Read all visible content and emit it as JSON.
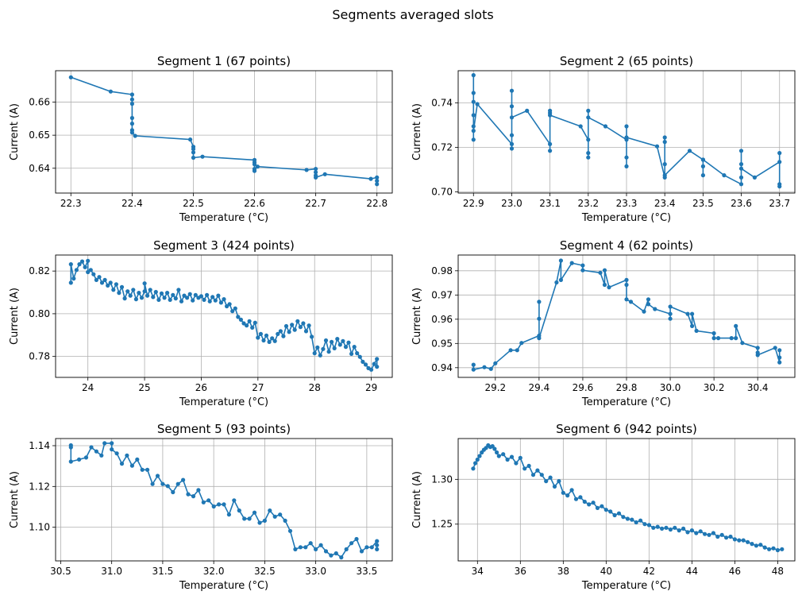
{
  "title": "Segments averaged slots",
  "line_color": "#1f77b4",
  "grid_color": "#b0b0b0",
  "chart_data": [
    {
      "type": "line",
      "title": "Segment 1 (67 points)",
      "xlabel": "Temperature (°C)",
      "ylabel": "Current (A)",
      "grid": true,
      "xlim": [
        22.275,
        22.825
      ],
      "ylim": [
        0.6325,
        0.6695
      ],
      "xticks": [
        22.3,
        22.4,
        22.5,
        22.6,
        22.7,
        22.8
      ],
      "xtick_labels": [
        "22.3",
        "22.4",
        "22.5",
        "22.6",
        "22.7",
        "22.8"
      ],
      "yticks": [
        0.64,
        0.65,
        0.66
      ],
      "ytick_labels": [
        "0.64",
        "0.65",
        "0.66"
      ],
      "x": [
        22.3,
        22.365,
        22.4,
        22.4,
        22.4,
        22.4,
        22.4,
        22.4,
        22.4,
        22.405,
        22.495,
        22.5,
        22.5,
        22.5,
        22.5,
        22.515,
        22.6,
        22.6,
        22.6,
        22.6,
        22.6,
        22.605,
        22.685,
        22.7,
        22.7,
        22.7,
        22.7,
        22.715,
        22.79,
        22.8,
        22.8,
        22.8
      ],
      "y": [
        0.6675,
        0.6632,
        0.6623,
        0.6608,
        0.6595,
        0.6552,
        0.6535,
        0.6515,
        0.6508,
        0.6498,
        0.6487,
        0.6465,
        0.6448,
        0.6458,
        0.6432,
        0.6435,
        0.6425,
        0.6418,
        0.6398,
        0.6392,
        0.6412,
        0.6405,
        0.6395,
        0.6398,
        0.6378,
        0.6388,
        0.6372,
        0.6382,
        0.6368,
        0.6372,
        0.6352,
        0.6362
      ]
    },
    {
      "type": "line",
      "title": "Segment 2 (65 points)",
      "xlabel": "Temperature (°C)",
      "ylabel": "Current (A)",
      "grid": true,
      "xlim": [
        22.86,
        23.74
      ],
      "ylim": [
        0.6995,
        0.7545
      ],
      "xticks": [
        22.9,
        23.0,
        23.1,
        23.2,
        23.3,
        23.4,
        23.5,
        23.6,
        23.7
      ],
      "xtick_labels": [
        "22.9",
        "23.0",
        "23.1",
        "23.2",
        "23.3",
        "23.4",
        "23.5",
        "23.6",
        "23.7"
      ],
      "yticks": [
        0.7,
        0.72,
        0.74
      ],
      "ytick_labels": [
        "0.70",
        "0.72",
        "0.74"
      ],
      "x": [
        22.9,
        22.9,
        22.9,
        22.9,
        22.9,
        22.9,
        22.9,
        22.91,
        23.0,
        23.0,
        23.0,
        23.0,
        23.0,
        23.0,
        23.04,
        23.1,
        23.1,
        23.1,
        23.1,
        23.1,
        23.18,
        23.2,
        23.2,
        23.2,
        23.2,
        23.2,
        23.245,
        23.3,
        23.3,
        23.3,
        23.3,
        23.3,
        23.38,
        23.4,
        23.4,
        23.4,
        23.4,
        23.4,
        23.465,
        23.5,
        23.5,
        23.5,
        23.5,
        23.555,
        23.6,
        23.6,
        23.6,
        23.6,
        23.6,
        23.635,
        23.7,
        23.7,
        23.7,
        23.7
      ],
      "y": [
        0.7525,
        0.7445,
        0.7405,
        0.7345,
        0.7295,
        0.7235,
        0.7275,
        0.7395,
        0.7215,
        0.7195,
        0.7255,
        0.7455,
        0.7385,
        0.7335,
        0.7365,
        0.7215,
        0.7185,
        0.7365,
        0.7355,
        0.7345,
        0.7295,
        0.7235,
        0.7155,
        0.7175,
        0.7365,
        0.7335,
        0.7295,
        0.7235,
        0.7115,
        0.7155,
        0.7295,
        0.7245,
        0.7205,
        0.7065,
        0.7125,
        0.7245,
        0.7225,
        0.7075,
        0.7185,
        0.7145,
        0.7075,
        0.7115,
        0.7145,
        0.7075,
        0.7035,
        0.7065,
        0.7125,
        0.7185,
        0.7105,
        0.7065,
        0.7135,
        0.7025,
        0.7035,
        0.7175
      ]
    },
    {
      "type": "line",
      "title": "Segment 3 (424 points)",
      "xlabel": "Temperature (°C)",
      "ylabel": "Current (A)",
      "grid": true,
      "xlim": [
        23.43,
        29.37
      ],
      "ylim": [
        0.7702,
        0.8275
      ],
      "xticks": [
        24,
        25,
        26,
        27,
        28,
        29
      ],
      "xtick_labels": [
        "24",
        "25",
        "26",
        "27",
        "28",
        "29"
      ],
      "yticks": [
        0.78,
        0.8,
        0.82
      ],
      "ytick_labels": [
        "0.78",
        "0.80",
        "0.82"
      ],
      "x": [
        23.7,
        23.7,
        23.75,
        23.8,
        23.85,
        23.9,
        23.95,
        24.0,
        24.0,
        24.05,
        24.1,
        24.15,
        24.2,
        24.25,
        24.3,
        24.35,
        24.4,
        24.45,
        24.5,
        24.55,
        24.6,
        24.65,
        24.7,
        24.75,
        24.8,
        24.85,
        24.9,
        24.95,
        25.0,
        25.0,
        25.05,
        25.1,
        25.15,
        25.2,
        25.25,
        25.3,
        25.35,
        25.4,
        25.45,
        25.5,
        25.55,
        25.6,
        25.65,
        25.7,
        25.75,
        25.8,
        25.85,
        25.9,
        25.95,
        26.0,
        26.05,
        26.1,
        26.15,
        26.2,
        26.25,
        26.3,
        26.35,
        26.4,
        26.45,
        26.5,
        26.55,
        26.6,
        26.65,
        26.7,
        26.75,
        26.8,
        26.85,
        26.9,
        26.95,
        27.0,
        27.05,
        27.1,
        27.15,
        27.2,
        27.25,
        27.3,
        27.35,
        27.4,
        27.45,
        27.5,
        27.55,
        27.6,
        27.65,
        27.7,
        27.75,
        27.8,
        27.85,
        27.9,
        27.95,
        28.0,
        28.05,
        28.1,
        28.15,
        28.2,
        28.25,
        28.3,
        28.35,
        28.4,
        28.45,
        28.5,
        28.55,
        28.6,
        28.65,
        28.7,
        28.75,
        28.8,
        28.85,
        28.9,
        28.95,
        29.0,
        29.05,
        29.1,
        29.1
      ],
      "y": [
        0.8145,
        0.8232,
        0.8165,
        0.8205,
        0.8232,
        0.8245,
        0.8218,
        0.8248,
        0.8195,
        0.8205,
        0.8185,
        0.8158,
        0.8172,
        0.8145,
        0.8158,
        0.8132,
        0.8145,
        0.8112,
        0.8138,
        0.8098,
        0.8125,
        0.8072,
        0.8105,
        0.8085,
        0.8112,
        0.8068,
        0.8098,
        0.8075,
        0.8105,
        0.8142,
        0.8085,
        0.8112,
        0.8078,
        0.8102,
        0.8065,
        0.8095,
        0.8075,
        0.8098,
        0.8065,
        0.8088,
        0.8072,
        0.8112,
        0.8058,
        0.8085,
        0.8075,
        0.8092,
        0.8062,
        0.8088,
        0.8075,
        0.8082,
        0.8065,
        0.8088,
        0.8058,
        0.8078,
        0.8062,
        0.8085,
        0.8052,
        0.8068,
        0.8035,
        0.8045,
        0.8012,
        0.8025,
        0.7985,
        0.7972,
        0.7955,
        0.7945,
        0.7965,
        0.7935,
        0.7958,
        0.7888,
        0.7905,
        0.7875,
        0.7898,
        0.7868,
        0.7885,
        0.7872,
        0.7905,
        0.7918,
        0.7895,
        0.7942,
        0.7915,
        0.7948,
        0.7925,
        0.7965,
        0.7938,
        0.7955,
        0.7918,
        0.7945,
        0.7892,
        0.7815,
        0.7842,
        0.7805,
        0.7835,
        0.7875,
        0.7822,
        0.7868,
        0.7838,
        0.7882,
        0.7855,
        0.7872,
        0.7845,
        0.7865,
        0.7812,
        0.7845,
        0.7815,
        0.7798,
        0.7775,
        0.7762,
        0.7745,
        0.7738,
        0.7765,
        0.7788,
        0.7752
      ]
    },
    {
      "type": "line",
      "title": "Segment 4 (62 points)",
      "xlabel": "Temperature (°C)",
      "ylabel": "Current (A)",
      "grid": true,
      "xlim": [
        29.03,
        30.57
      ],
      "ylim": [
        0.936,
        0.9865
      ],
      "xticks": [
        29.2,
        29.4,
        29.6,
        29.8,
        30.0,
        30.2,
        30.4
      ],
      "xtick_labels": [
        "29.2",
        "29.4",
        "29.6",
        "29.8",
        "30.0",
        "30.2",
        "30.4"
      ],
      "yticks": [
        0.94,
        0.95,
        0.96,
        0.97,
        0.98
      ],
      "ytick_labels": [
        "0.94",
        "0.95",
        "0.96",
        "0.97",
        "0.98"
      ],
      "x": [
        29.1,
        29.1,
        29.15,
        29.18,
        29.2,
        29.27,
        29.3,
        29.32,
        29.4,
        29.4,
        29.4,
        29.4,
        29.48,
        29.5,
        29.5,
        29.55,
        29.6,
        29.6,
        29.68,
        29.7,
        29.7,
        29.72,
        29.8,
        29.8,
        29.8,
        29.82,
        29.88,
        29.9,
        29.9,
        29.93,
        30.0,
        30.0,
        30.0,
        30.08,
        30.1,
        30.1,
        30.12,
        30.2,
        30.2,
        30.22,
        30.28,
        30.3,
        30.3,
        30.33,
        30.4,
        30.4,
        30.4,
        30.48,
        30.5,
        30.5,
        30.5
      ],
      "y": [
        0.9412,
        0.9392,
        0.9402,
        0.9395,
        0.9418,
        0.9472,
        0.9472,
        0.9502,
        0.9532,
        0.9602,
        0.9672,
        0.9522,
        0.9752,
        0.9842,
        0.9762,
        0.9832,
        0.9822,
        0.9802,
        0.9792,
        0.9742,
        0.9802,
        0.9732,
        0.9762,
        0.9742,
        0.9682,
        0.9672,
        0.9632,
        0.9682,
        0.9662,
        0.9642,
        0.9622,
        0.9602,
        0.9652,
        0.9622,
        0.9572,
        0.9622,
        0.9552,
        0.9542,
        0.9522,
        0.9522,
        0.9522,
        0.9522,
        0.9572,
        0.9502,
        0.9482,
        0.9462,
        0.9452,
        0.9482,
        0.9422,
        0.9442,
        0.9472
      ]
    },
    {
      "type": "line",
      "title": "Segment 5 (93 points)",
      "xlabel": "Temperature (°C)",
      "ylabel": "Current (A)",
      "grid": true,
      "xlim": [
        30.45,
        33.75
      ],
      "ylim": [
        1.0835,
        1.1435
      ],
      "xticks": [
        30.5,
        31.0,
        31.5,
        32.0,
        32.5,
        33.0,
        33.5
      ],
      "xtick_labels": [
        "30.5",
        "31.0",
        "31.5",
        "32.0",
        "32.5",
        "33.0",
        "33.5"
      ],
      "yticks": [
        1.1,
        1.12,
        1.14
      ],
      "ytick_labels": [
        "1.10",
        "1.12",
        "1.14"
      ],
      "x": [
        30.6,
        30.6,
        30.6,
        30.68,
        30.75,
        30.8,
        30.85,
        30.9,
        30.93,
        31.0,
        31.0,
        31.05,
        31.1,
        31.15,
        31.2,
        31.25,
        31.3,
        31.35,
        31.4,
        31.45,
        31.5,
        31.55,
        31.6,
        31.65,
        31.7,
        31.75,
        31.8,
        31.85,
        31.9,
        31.95,
        32.0,
        32.05,
        32.1,
        32.15,
        32.2,
        32.25,
        32.3,
        32.35,
        32.4,
        32.45,
        32.5,
        32.55,
        32.6,
        32.65,
        32.7,
        32.75,
        32.8,
        32.85,
        32.9,
        32.95,
        33.0,
        33.05,
        33.1,
        33.15,
        33.2,
        33.25,
        33.3,
        33.35,
        33.4,
        33.45,
        33.5,
        33.55,
        33.6,
        33.6,
        33.6
      ],
      "y": [
        1.1392,
        1.1402,
        1.1322,
        1.1332,
        1.1342,
        1.1392,
        1.1372,
        1.1352,
        1.1412,
        1.1412,
        1.1382,
        1.1362,
        1.1312,
        1.1352,
        1.1302,
        1.1332,
        1.1282,
        1.1282,
        1.1212,
        1.1252,
        1.1212,
        1.1202,
        1.1172,
        1.1212,
        1.1232,
        1.1162,
        1.1152,
        1.1182,
        1.1122,
        1.1132,
        1.1102,
        1.1112,
        1.1112,
        1.1062,
        1.1132,
        1.1082,
        1.1042,
        1.1042,
        1.1072,
        1.1022,
        1.1032,
        1.1082,
        1.1052,
        1.1062,
        1.1032,
        1.0982,
        1.0892,
        1.0902,
        1.0902,
        1.0922,
        1.0892,
        1.0912,
        1.0882,
        1.0862,
        1.0872,
        1.0852,
        1.0892,
        1.0922,
        1.0942,
        1.0882,
        1.0902,
        1.0902,
        1.0932,
        1.0892,
        1.0912
      ]
    },
    {
      "type": "line",
      "title": "Segment 6 (942 points)",
      "xlabel": "Temperature (°C)",
      "ylabel": "Current (A)",
      "grid": true,
      "xlim": [
        33.1,
        48.8
      ],
      "ylim": [
        1.209,
        1.3455
      ],
      "xticks": [
        34,
        36,
        38,
        40,
        42,
        44,
        46,
        48
      ],
      "xtick_labels": [
        "34",
        "36",
        "38",
        "40",
        "42",
        "44",
        "46",
        "48"
      ],
      "yticks": [
        1.25,
        1.3
      ],
      "ytick_labels": [
        "1.25",
        "1.30"
      ],
      "x": [
        33.8,
        33.9,
        34.0,
        34.1,
        34.2,
        34.3,
        34.4,
        34.5,
        34.6,
        34.7,
        34.8,
        34.9,
        35.0,
        35.2,
        35.4,
        35.6,
        35.8,
        36.0,
        36.2,
        36.4,
        36.6,
        36.8,
        37.0,
        37.2,
        37.4,
        37.6,
        37.8,
        38.0,
        38.2,
        38.4,
        38.6,
        38.8,
        39.0,
        39.2,
        39.4,
        39.6,
        39.8,
        40.0,
        40.2,
        40.4,
        40.6,
        40.8,
        41.0,
        41.2,
        41.4,
        41.6,
        41.8,
        42.0,
        42.2,
        42.4,
        42.6,
        42.8,
        43.0,
        43.2,
        43.4,
        43.6,
        43.8,
        44.0,
        44.2,
        44.4,
        44.6,
        44.8,
        45.0,
        45.2,
        45.4,
        45.6,
        45.8,
        46.0,
        46.2,
        46.4,
        46.6,
        46.8,
        47.0,
        47.2,
        47.4,
        47.6,
        47.8,
        48.0,
        48.2
      ],
      "y": [
        1.312,
        1.318,
        1.322,
        1.326,
        1.33,
        1.333,
        1.335,
        1.338,
        1.336,
        1.337,
        1.334,
        1.33,
        1.326,
        1.328,
        1.322,
        1.325,
        1.318,
        1.324,
        1.312,
        1.315,
        1.305,
        1.31,
        1.305,
        1.298,
        1.302,
        1.292,
        1.298,
        1.285,
        1.282,
        1.288,
        1.278,
        1.28,
        1.275,
        1.272,
        1.274,
        1.268,
        1.27,
        1.266,
        1.264,
        1.26,
        1.262,
        1.258,
        1.256,
        1.255,
        1.252,
        1.254,
        1.25,
        1.249,
        1.246,
        1.247,
        1.245,
        1.246,
        1.244,
        1.246,
        1.243,
        1.245,
        1.241,
        1.243,
        1.24,
        1.242,
        1.239,
        1.238,
        1.24,
        1.236,
        1.238,
        1.235,
        1.236,
        1.233,
        1.232,
        1.232,
        1.23,
        1.228,
        1.226,
        1.227,
        1.224,
        1.222,
        1.223,
        1.221,
        1.222
      ]
    }
  ]
}
